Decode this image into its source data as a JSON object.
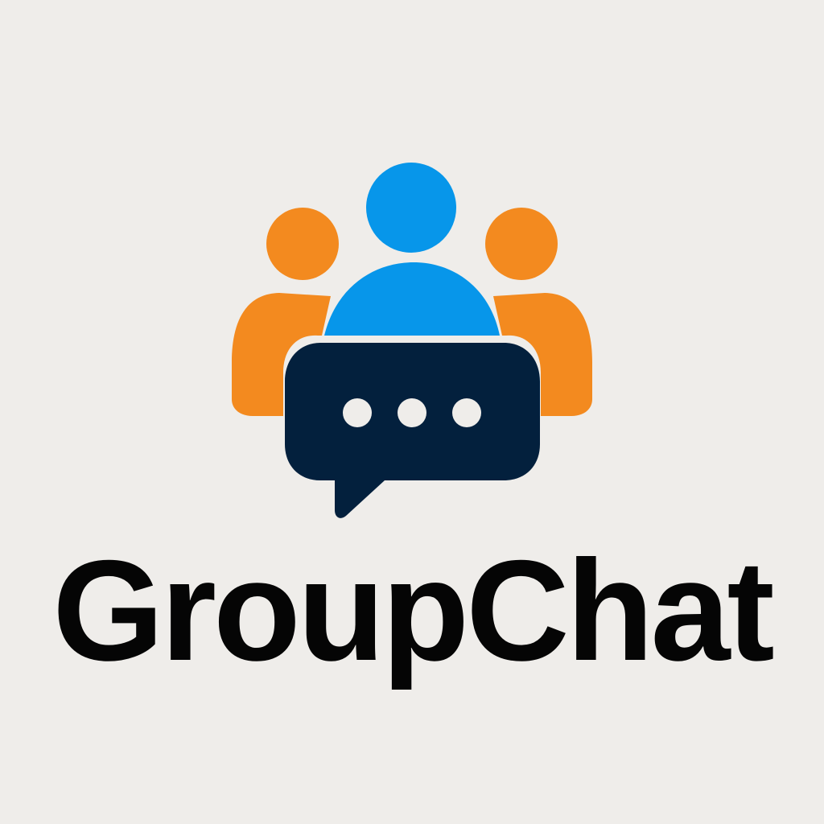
{
  "brand": {
    "name": "GroupChat"
  },
  "logo": {
    "icons": {
      "people": "group-people-icon",
      "speech": "speech-bubble-icon",
      "typing": "ellipsis-icon"
    },
    "colors": {
      "background": "#efedea",
      "center_person": "#0796ea",
      "side_people": "#f38a1f",
      "bubble": "#03203d",
      "dots": "#efedea",
      "text": "#050505"
    }
  }
}
